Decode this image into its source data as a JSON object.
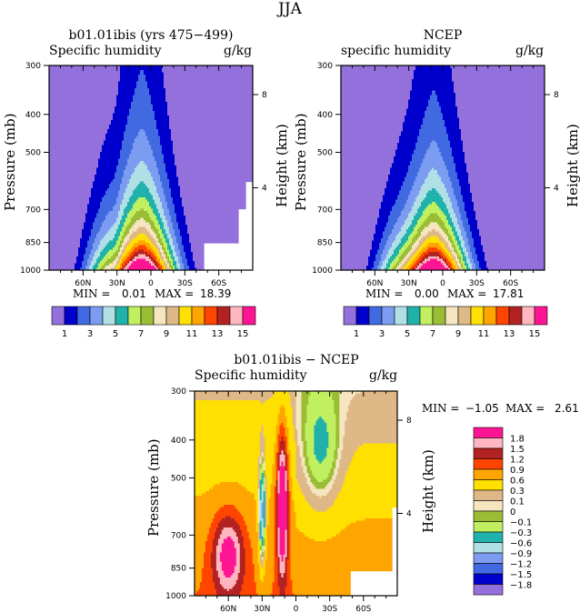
{
  "figure_title": "JJA",
  "levels": [
    1,
    2,
    3,
    4,
    5,
    6,
    7,
    8,
    9,
    10,
    11,
    12,
    13,
    14,
    15
  ],
  "palette": [
    "#9370DB",
    "#0000CD",
    "#4169E1",
    "#7B9CF0",
    "#B0E0E6",
    "#20B2AA",
    "#C0F060",
    "#9ABD35",
    "#F5E6C0",
    "#DEB887",
    "#FFE000",
    "#FFA500",
    "#FF4500",
    "#B22222",
    "#FFB6C1",
    "#FF1493"
  ],
  "diff_levels": [
    -1.8,
    -1.5,
    -1.2,
    -0.9,
    -0.6,
    -0.3,
    -0.1,
    0,
    0.1,
    0.3,
    0.6,
    0.9,
    1.2,
    1.5,
    1.8
  ],
  "chart_data": [
    {
      "type": "contour",
      "title": "b01.01ibis (yrs 475−499)",
      "left_subtitle": "Specific humidity",
      "right_subtitle": "g/kg",
      "xlabel": "",
      "ylabel": "Pressure (mb)",
      "y2label": "Height (km)",
      "x_ticks": [
        "60N",
        "30N",
        "0",
        "30S",
        "60S"
      ],
      "y_ticks": [
        "300",
        "400",
        "500",
        "700",
        "850",
        "1000"
      ],
      "y2_ticks": [
        "8",
        "4"
      ],
      "ylim": [
        1000,
        300
      ],
      "min_label": "MIN =",
      "min_value": "0.01",
      "max_label": "MAX =",
      "max_value": "18.39",
      "colorbar_labels": [
        "1",
        "3",
        "5",
        "7",
        "9",
        "11",
        "13",
        "15"
      ],
      "peak_value": 18.39,
      "peak_lat_desc": "near 10N at 1000 mb"
    },
    {
      "type": "contour",
      "title": "NCEP",
      "left_subtitle": "specific humidity",
      "right_subtitle": "g/kg",
      "ylabel": "Pressure (mb)",
      "y2label": "Height (km)",
      "x_ticks": [
        "60N",
        "30N",
        "0",
        "30S",
        "60S"
      ],
      "y_ticks": [
        "300",
        "400",
        "500",
        "700",
        "850",
        "1000"
      ],
      "y2_ticks": [
        "8",
        "4"
      ],
      "ylim": [
        1000,
        300
      ],
      "min_label": "MIN =",
      "min_value": "0.00",
      "max_label": "MAX =",
      "max_value": "17.81",
      "colorbar_labels": [
        "1",
        "3",
        "5",
        "7",
        "9",
        "11",
        "13",
        "15"
      ],
      "peak_value": 17.81
    },
    {
      "type": "contour",
      "title": "b01.01ibis − NCEP",
      "left_subtitle": "Specific humidity",
      "right_subtitle": "g/kg",
      "ylabel": "Pressure (mb)",
      "y2label": "Height (km)",
      "x_ticks": [
        "60N",
        "30N",
        "0",
        "30S",
        "60S"
      ],
      "y_ticks": [
        "300",
        "400",
        "500",
        "700",
        "850",
        "1000"
      ],
      "y2_ticks": [
        "8",
        "4"
      ],
      "ylim": [
        1000,
        300
      ],
      "min_label": "MIN =",
      "min_value": "−1.05",
      "max_label": "MAX =",
      "max_value": "2.61",
      "colorbar_labels": [
        "1.8",
        "1.5",
        "1.2",
        "0.9",
        "0.6",
        "0.3",
        "0.1",
        "0",
        "−0.1",
        "−0.3",
        "−0.6",
        "−0.9",
        "−1.2",
        "−1.5",
        "−1.8"
      ]
    }
  ]
}
